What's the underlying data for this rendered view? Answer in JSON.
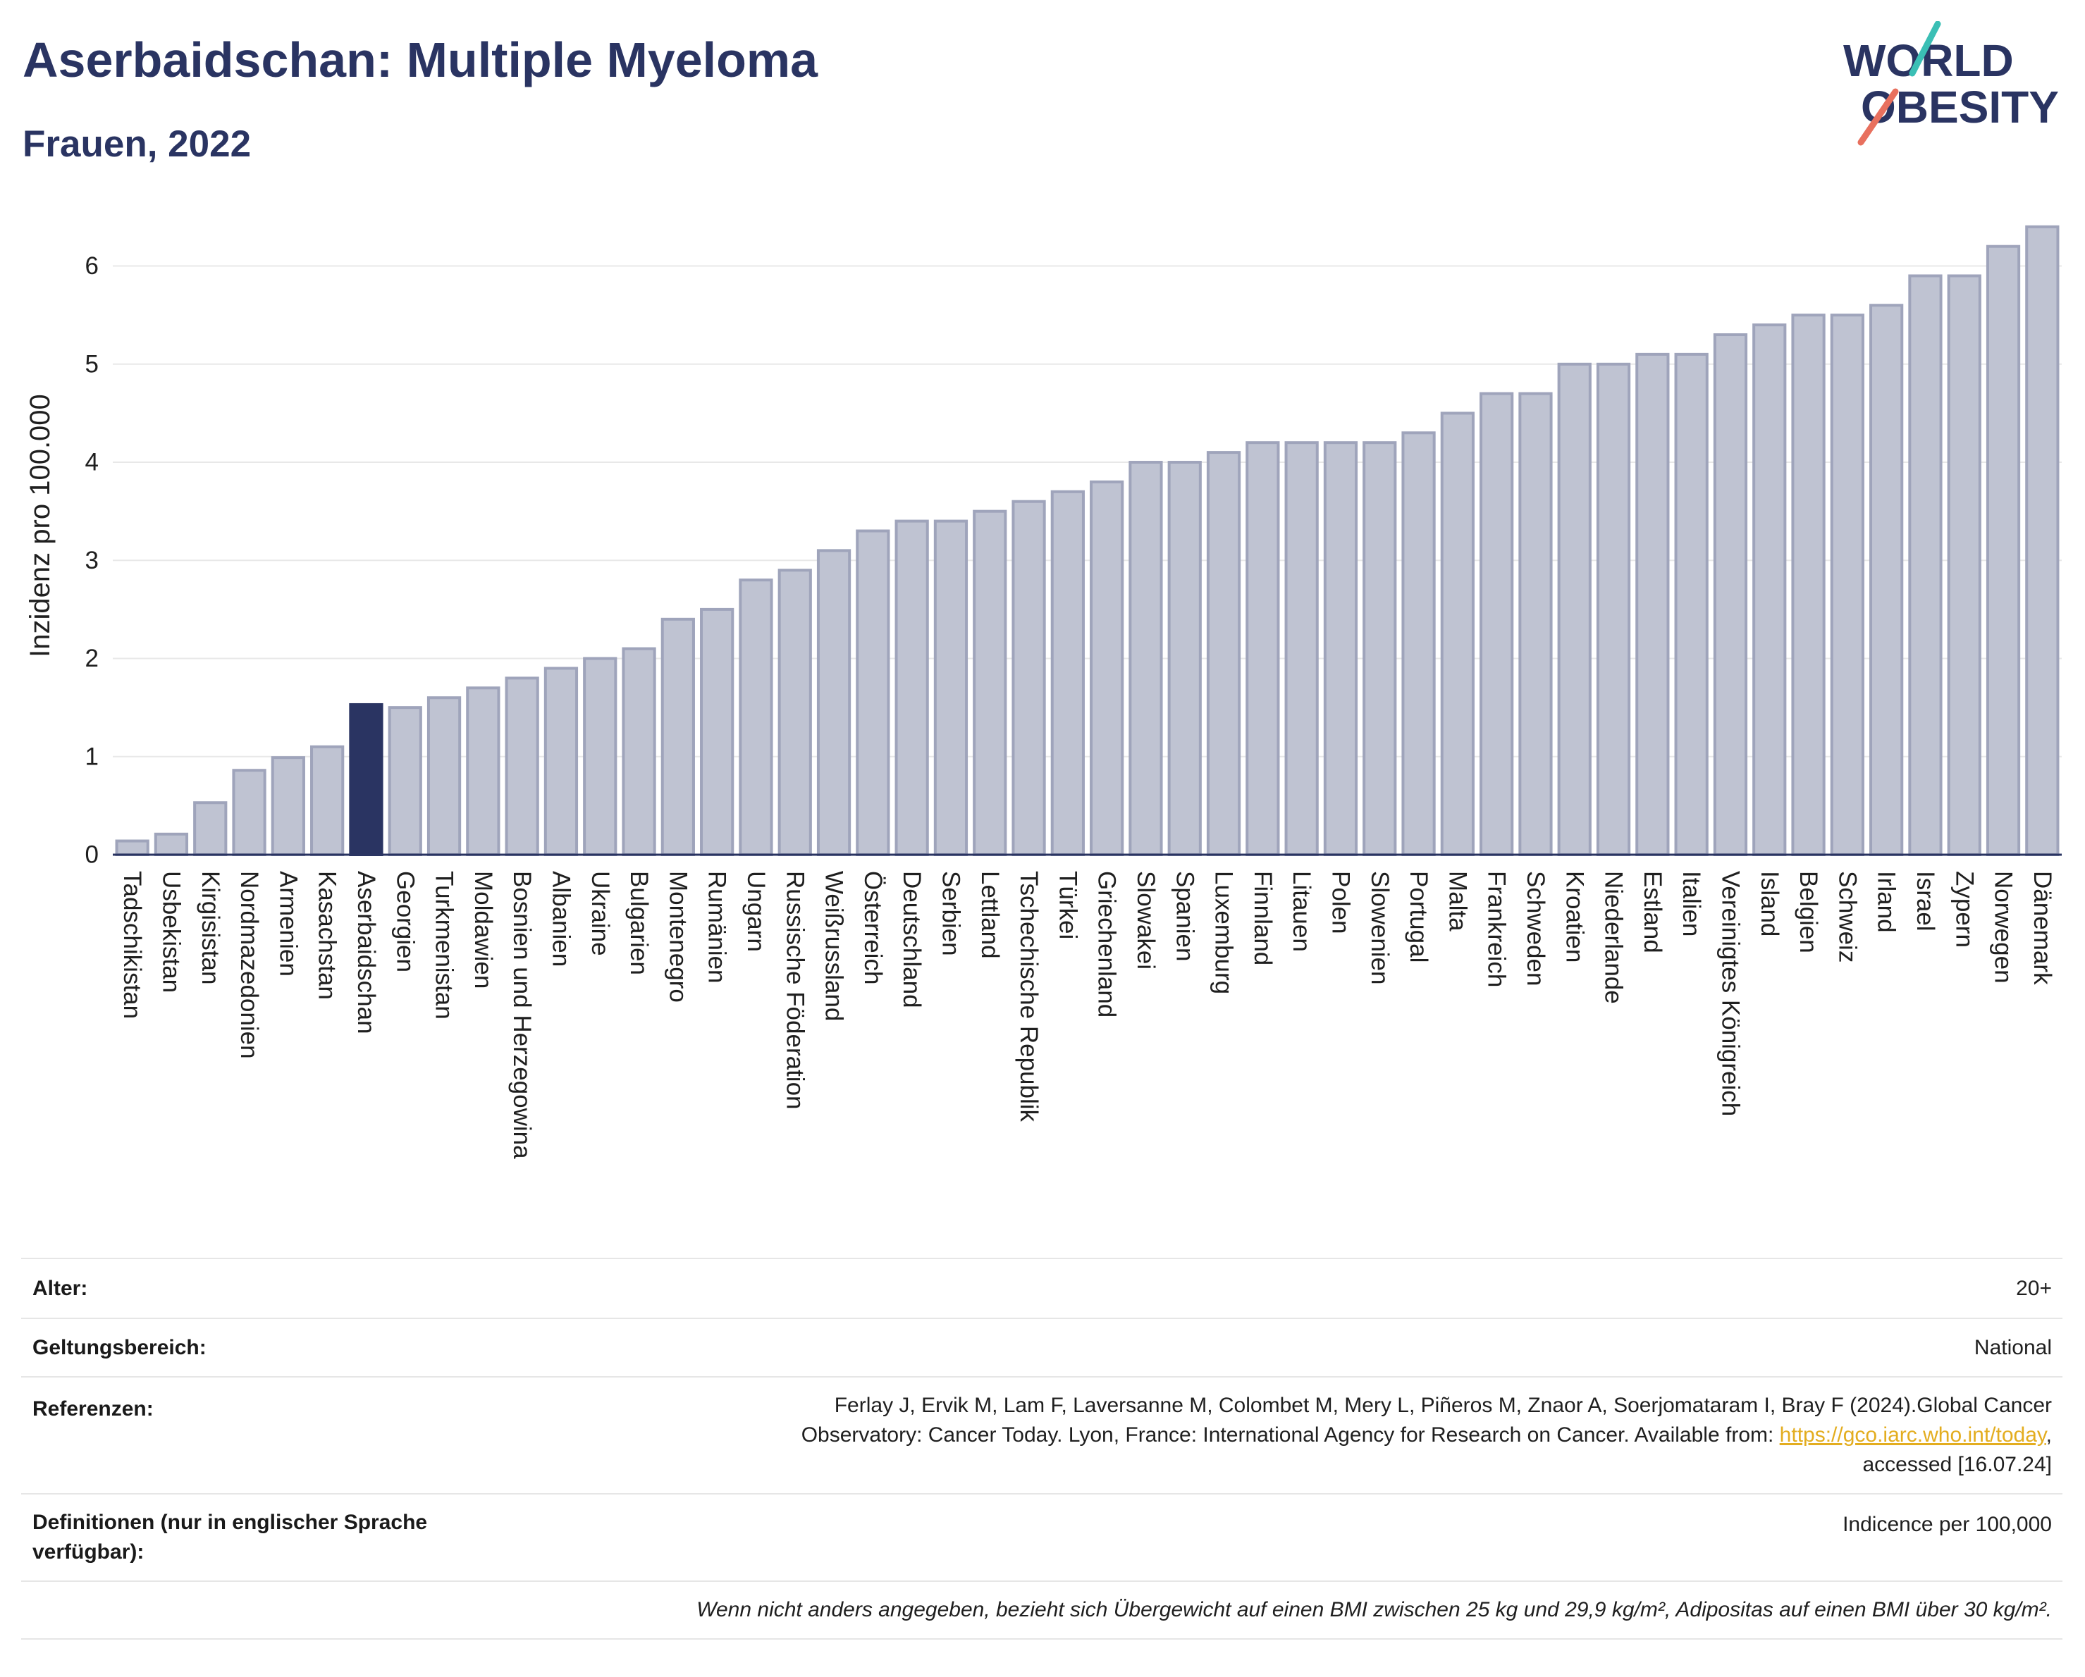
{
  "header": {
    "title": "Aserbaidschan: Multiple Myeloma",
    "subtitle": "Frauen, 2022"
  },
  "logo": {
    "line1": "WORLD",
    "line2": "OBESITY",
    "colors": {
      "text": "#2a3462",
      "slash_top": "#3bbfb5",
      "slash_bottom": "#e8705e"
    }
  },
  "chart_data": {
    "type": "bar",
    "title": "Aserbaidschan: Multiple Myeloma",
    "subtitle": "Frauen, 2022",
    "xlabel": "",
    "ylabel": "Inzidenz pro 100.000",
    "ylim": [
      0,
      6.6
    ],
    "yticks": [
      0,
      1,
      2,
      3,
      4,
      5,
      6
    ],
    "grid": true,
    "highlight": "Aserbaidschan",
    "colors": {
      "bar": "#bfc3d2",
      "bar_border": "#9fa4bb",
      "highlight": "#2a3462",
      "grid": "#e8e8e8",
      "axis": "#2a3462"
    },
    "categories": [
      "Tadschikistan",
      "Usbekistan",
      "Kirgisistan",
      "Nordmazedonien",
      "Armenien",
      "Kasachstan",
      "Aserbaidschan",
      "Georgien",
      "Turkmenistan",
      "Moldawien",
      "Bosnien und Herzegowina",
      "Albanien",
      "Ukraine",
      "Bulgarien",
      "Montenegro",
      "Rumänien",
      "Ungarn",
      "Russische Föderation",
      "Weißrussland",
      "Österreich",
      "Deutschland",
      "Serbien",
      "Lettland",
      "Tschechische Republik",
      "Türkei",
      "Griechenland",
      "Slowakei",
      "Spanien",
      "Luxemburg",
      "Finnland",
      "Litauen",
      "Polen",
      "Slowenien",
      "Portugal",
      "Malta",
      "Frankreich",
      "Schweden",
      "Kroatien",
      "Niederlande",
      "Estland",
      "Italien",
      "Vereinigtes Königreich",
      "Island",
      "Belgien",
      "Schweiz",
      "Irland",
      "Israel",
      "Zypern",
      "Norwegen",
      "Dänemark"
    ],
    "values": [
      0.14,
      0.21,
      0.53,
      0.86,
      0.99,
      1.1,
      1.53,
      1.5,
      1.6,
      1.7,
      1.8,
      1.9,
      2.0,
      2.1,
      2.4,
      2.5,
      2.8,
      2.9,
      3.1,
      3.3,
      3.4,
      3.4,
      3.5,
      3.6,
      3.7,
      3.8,
      4.0,
      4.0,
      4.1,
      4.2,
      4.2,
      4.2,
      4.2,
      4.3,
      4.5,
      4.7,
      4.7,
      5.0,
      5.0,
      5.1,
      5.1,
      5.3,
      5.4,
      5.5,
      5.5,
      5.6,
      5.9,
      5.9,
      6.2,
      6.4
    ]
  },
  "info": {
    "age": {
      "label": "Alter:",
      "value": "20+"
    },
    "scope": {
      "label": "Geltungsbereich:",
      "value": "National"
    },
    "references": {
      "label": "Referenzen:",
      "line1": "Ferlay J, Ervik M, Lam F, Laversanne M, Colombet M, Mery L, Piñeros M, Znaor A, Soerjomataram I, Bray F (2024).Global Cancer",
      "line2_before_link": "Observatory: Cancer Today. Lyon, France: International Agency for Research on Cancer. Available from: ",
      "link": "https://gco.iarc.who.int/today",
      "line2_after_link": ",",
      "line3": "accessed [16.07.24]"
    },
    "definitions": {
      "label": "Definitionen (nur in englischer Sprache verfügbar):",
      "value": "Indicence per 100,000"
    },
    "note": "Wenn nicht anders angegeben, bezieht sich Übergewicht auf einen BMI zwischen 25 kg und 29,9 kg/m², Adipositas auf einen BMI über 30 kg/m²."
  }
}
